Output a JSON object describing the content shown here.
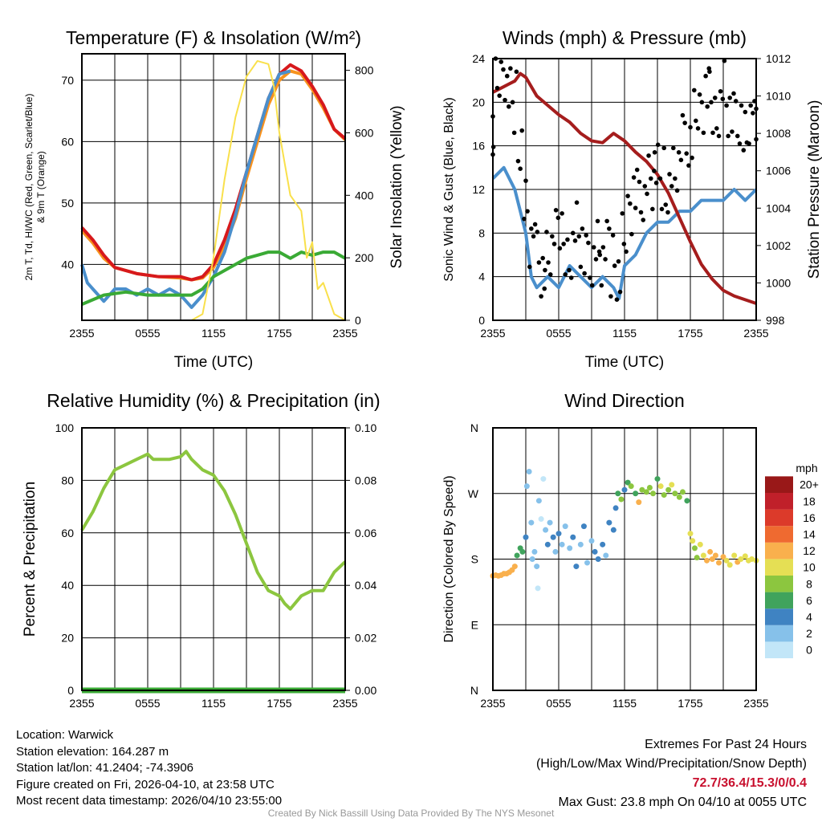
{
  "chart_data": [
    {
      "type": "line",
      "title": "Temperature (F) & Insolation (W/m²)",
      "xlabel": "Time (UTC)",
      "ylabel": "2m T, Td, HI/WC (Red, Green, Scarlet/Blue)",
      "ylabel2": "& 9m T (Orange)",
      "y2label": "Solar Insolation (Yellow)",
      "xticks": [
        "2355",
        "0555",
        "1155",
        "1755",
        "2355"
      ],
      "yticks": [
        40,
        50,
        60,
        70
      ],
      "y2ticks": [
        0,
        200,
        400,
        600,
        800
      ],
      "ylim": [
        30.9,
        74.3
      ],
      "y2lim": [
        0,
        853
      ],
      "xlim": [
        0,
        24
      ],
      "series": [
        {
          "name": "9m T",
          "color": "#f7931e",
          "axis": "left",
          "x": [
            0,
            1,
            2,
            3,
            5,
            7,
            9,
            10,
            11,
            12,
            13,
            14,
            15,
            16,
            17,
            18,
            19,
            20,
            21,
            22,
            23,
            24
          ],
          "y": [
            45.5,
            43.5,
            41,
            39.5,
            38.5,
            38,
            37.8,
            37.5,
            37.8,
            39.5,
            43,
            47.5,
            54,
            60,
            66,
            70,
            71.5,
            71,
            68.5,
            65.5,
            62,
            60.3
          ]
        },
        {
          "name": "2m T",
          "color": "#d7191c",
          "axis": "left",
          "x": [
            0,
            1,
            2,
            3,
            5,
            7,
            9,
            10,
            11,
            12,
            13,
            14,
            15,
            16,
            17,
            18,
            19,
            20,
            21,
            22,
            23,
            24
          ],
          "y": [
            46,
            44,
            41.5,
            39.5,
            38.5,
            38,
            38,
            37.5,
            38,
            40,
            44,
            49,
            55,
            61,
            67,
            71,
            72.5,
            71.5,
            69,
            66,
            62,
            60.5
          ]
        },
        {
          "name": "HI/WC",
          "color": "#4a8fcc",
          "axis": "left",
          "x": [
            0,
            0.5,
            1,
            2,
            3,
            4,
            5,
            6,
            7,
            8,
            9,
            10,
            11,
            12,
            13,
            14,
            15,
            16,
            17,
            18,
            19
          ],
          "y": [
            40,
            37,
            36,
            34,
            36,
            36,
            35,
            36,
            35,
            36,
            35,
            33,
            35,
            38,
            42,
            48,
            55,
            61,
            67,
            71,
            71.5
          ]
        },
        {
          "name": "Td",
          "color": "#3aaa35",
          "axis": "left",
          "x": [
            0,
            2,
            4,
            6,
            8,
            10,
            11,
            12,
            13,
            14,
            15,
            16,
            17,
            18,
            19,
            20,
            21,
            22,
            23,
            24
          ],
          "y": [
            33.5,
            35,
            35.5,
            35,
            35,
            35,
            36,
            38,
            39,
            40,
            41,
            41.5,
            42,
            42,
            41,
            42,
            41.5,
            42,
            42,
            41
          ]
        },
        {
          "name": "Solar",
          "color": "#f9e04b",
          "axis": "right",
          "x": [
            0,
            10,
            11,
            12,
            13,
            14,
            15,
            16,
            17,
            17.5,
            18,
            19,
            20,
            20.5,
            21,
            21.5,
            22,
            23,
            24
          ],
          "y": [
            0,
            0,
            20,
            200,
            450,
            650,
            780,
            830,
            820,
            750,
            600,
            400,
            350,
            200,
            250,
            100,
            120,
            20,
            0
          ]
        }
      ]
    },
    {
      "type": "line",
      "title": "Winds (mph) & Pressure (mb)",
      "xlabel": "Time (UTC)",
      "ylabel": "Sonic Wind & Gust (Blue, Black)",
      "y2label": "Station Pressure (Maroon)",
      "xticks": [
        "2355",
        "0555",
        "1155",
        "1755",
        "2355"
      ],
      "yticks": [
        0,
        4,
        8,
        12,
        16,
        20,
        24
      ],
      "y2ticks": [
        998,
        1000,
        1002,
        1004,
        1006,
        1008,
        1010,
        1012
      ],
      "ylim": [
        0,
        24
      ],
      "y2lim": [
        998,
        1012
      ],
      "xlim": [
        0,
        24
      ],
      "series": [
        {
          "name": "Sonic Wind",
          "color": "#4a8fcc",
          "axis": "left",
          "x": [
            0,
            1,
            2,
            2.5,
            3,
            3.5,
            4,
            5,
            6,
            7,
            8,
            9,
            10,
            11,
            11.5,
            12,
            13,
            14,
            15,
            16,
            17,
            18,
            19,
            20,
            21,
            22,
            23,
            24
          ],
          "y": [
            13,
            14,
            12,
            10,
            8,
            4,
            3,
            4,
            3,
            5,
            4,
            3,
            4,
            3,
            2,
            5,
            6,
            8,
            9,
            9,
            10,
            10,
            11,
            11,
            11,
            12,
            11,
            12
          ]
        },
        {
          "name": "Pressure",
          "color": "#a51d1d",
          "axis": "right",
          "x": [
            0,
            1,
            2,
            2.5,
            3,
            4,
            5,
            6,
            7,
            8,
            9,
            10,
            11,
            12,
            13,
            14,
            15,
            16,
            17,
            18,
            19,
            20,
            21,
            22,
            23,
            24
          ],
          "y": [
            1010.2,
            1010.5,
            1010.8,
            1011.2,
            1011,
            1010,
            1009.5,
            1009,
            1008.6,
            1008,
            1007.6,
            1007.5,
            1008,
            1007.6,
            1007,
            1006.5,
            1005.8,
            1004.8,
            1003.5,
            1002.2,
            1001,
            1000.2,
            999.6,
            999.3,
            999.1,
            998.9
          ]
        },
        {
          "name": "Gust",
          "color": "#000000",
          "axis": "left",
          "style": "dots",
          "x": [
            0,
            0.5,
            1,
            1.5,
            2,
            2.5,
            3,
            3.5,
            4,
            4.5,
            5,
            5.5,
            6,
            6.5,
            7,
            7.5,
            8,
            8.5,
            9,
            9.5,
            10,
            10.5,
            11,
            11.5,
            12,
            12.5,
            13,
            13.5,
            14,
            14.5,
            15,
            15.5,
            16,
            16.5,
            17,
            17.5,
            18,
            18.5,
            19,
            19.5,
            20,
            20.5,
            21,
            21.5,
            22,
            22.5,
            23,
            23.5,
            24
          ],
          "y": [
            18,
            22,
            23,
            21,
            20,
            16,
            10,
            7,
            6,
            5,
            6,
            7,
            8,
            7,
            6,
            8,
            7,
            5,
            6,
            7,
            6,
            7,
            5,
            4,
            7,
            10,
            11,
            12,
            13,
            13,
            14,
            13,
            12,
            13,
            14,
            16,
            17,
            19,
            20,
            21,
            20,
            19,
            21,
            19,
            18,
            19,
            17,
            19,
            18
          ]
        }
      ]
    },
    {
      "type": "line",
      "title": "Relative Humidity (%) & Precipitation (in)",
      "ylabel": "Percent & Precipitation",
      "xticks": [
        "2355",
        "0555",
        "1155",
        "1755",
        "2355"
      ],
      "yticks": [
        0,
        20,
        40,
        60,
        80,
        100
      ],
      "y2ticks": [
        "0.00",
        "0.02",
        "0.04",
        "0.06",
        "0.08",
        "0.10"
      ],
      "ylim": [
        0,
        100
      ],
      "y2lim": [
        0,
        0.1
      ],
      "xlim": [
        0,
        24
      ],
      "series": [
        {
          "name": "RH",
          "color": "#8cc63f",
          "axis": "left",
          "x": [
            0,
            1,
            2,
            3,
            4,
            5,
            6,
            6.5,
            7,
            8,
            9,
            9.5,
            10,
            11,
            12,
            13,
            14,
            15,
            16,
            17,
            18,
            18.5,
            19,
            20,
            21,
            22,
            23,
            24
          ],
          "y": [
            61,
            68,
            77,
            84,
            86,
            88,
            90,
            88,
            88,
            88,
            89,
            91,
            88,
            84,
            82,
            76,
            67,
            56,
            45,
            38,
            36,
            33,
            31,
            36,
            38,
            38,
            45,
            49
          ]
        },
        {
          "name": "Precipitation",
          "color": "#3aaa35",
          "axis": "right",
          "x": [
            0,
            24
          ],
          "y": [
            0,
            0
          ]
        }
      ]
    },
    {
      "type": "scatter",
      "title": "Wind Direction",
      "ylabel": "Direction (Colored By Speed)",
      "xticks": [
        "2355",
        "0555",
        "1155",
        "1755",
        "2355"
      ],
      "ytick_labels": [
        "N",
        "E",
        "S",
        "W",
        "N"
      ],
      "ylim": [
        0,
        360
      ],
      "xlim": [
        0,
        24
      ],
      "legend": {
        "title": "mph",
        "labels": [
          "0",
          "2",
          "4",
          "6",
          "8",
          "10",
          "12",
          "14",
          "16",
          "18",
          "20+"
        ],
        "colors": [
          "#c2e6f8",
          "#86c1ea",
          "#3f83c2",
          "#40a35c",
          "#8cc63f",
          "#e5df54",
          "#f9b04d",
          "#ef6a30",
          "#dc3a2a",
          "#c0202a",
          "#991818"
        ],
        "placement": "right"
      },
      "points": [
        [
          0,
          157,
          13
        ],
        [
          0.25,
          158,
          13
        ],
        [
          0.5,
          157,
          13
        ],
        [
          0.75,
          158,
          13
        ],
        [
          1,
          160,
          13
        ],
        [
          1.25,
          160,
          13
        ],
        [
          1.5,
          162,
          13
        ],
        [
          1.75,
          165,
          13
        ],
        [
          2,
          170,
          12
        ],
        [
          2.2,
          185,
          7
        ],
        [
          2.5,
          195,
          7
        ],
        [
          2.7,
          190,
          6
        ],
        [
          3,
          210,
          4
        ],
        [
          3.1,
          280,
          3
        ],
        [
          3.3,
          300,
          2
        ],
        [
          3.5,
          230,
          2
        ],
        [
          3.6,
          180,
          3
        ],
        [
          3.8,
          190,
          2
        ],
        [
          4,
          170,
          3
        ],
        [
          4.1,
          140,
          1
        ],
        [
          4.2,
          260,
          2
        ],
        [
          4.4,
          235,
          1
        ],
        [
          4.6,
          290,
          1
        ],
        [
          4.8,
          220,
          3
        ],
        [
          5,
          200,
          4
        ],
        [
          5.2,
          230,
          3
        ],
        [
          5.5,
          210,
          4
        ],
        [
          5.7,
          190,
          3
        ],
        [
          6,
          215,
          4
        ],
        [
          6.3,
          200,
          3
        ],
        [
          6.6,
          225,
          2
        ],
        [
          7,
          195,
          2
        ],
        [
          7.3,
          210,
          4
        ],
        [
          7.6,
          170,
          4
        ],
        [
          8,
          200,
          3
        ],
        [
          8.3,
          225,
          4
        ],
        [
          8.6,
          175,
          3
        ],
        [
          9,
          205,
          3
        ],
        [
          9.3,
          190,
          4
        ],
        [
          9.6,
          180,
          4
        ],
        [
          10,
          200,
          4
        ],
        [
          10.3,
          185,
          3
        ],
        [
          10.6,
          230,
          4
        ],
        [
          11,
          220,
          5
        ],
        [
          11.2,
          250,
          4
        ],
        [
          11.4,
          270,
          6
        ],
        [
          11.7,
          262,
          9
        ],
        [
          12,
          275,
          5
        ],
        [
          12.3,
          285,
          6
        ],
        [
          12.6,
          280,
          8
        ],
        [
          13,
          270,
          7
        ],
        [
          13.3,
          258,
          12
        ],
        [
          13.6,
          275,
          8
        ],
        [
          14,
          272,
          8
        ],
        [
          14.3,
          278,
          9
        ],
        [
          14.6,
          270,
          8
        ],
        [
          15,
          290,
          7
        ],
        [
          15.3,
          280,
          10
        ],
        [
          15.6,
          268,
          9
        ],
        [
          16,
          275,
          8
        ],
        [
          16.3,
          282,
          10
        ],
        [
          16.6,
          270,
          9
        ],
        [
          17,
          265,
          8
        ],
        [
          17.3,
          272,
          9
        ],
        [
          17.7,
          260,
          7
        ],
        [
          18,
          215,
          10
        ],
        [
          18.2,
          205,
          11
        ],
        [
          18.4,
          195,
          9
        ],
        [
          18.6,
          182,
          8
        ],
        [
          18.9,
          200,
          11
        ],
        [
          19.2,
          185,
          10
        ],
        [
          19.5,
          178,
          12
        ],
        [
          19.8,
          190,
          12
        ],
        [
          20,
          180,
          12
        ],
        [
          20.3,
          185,
          13
        ],
        [
          20.6,
          175,
          12
        ],
        [
          21,
          183,
          12
        ],
        [
          21.3,
          178,
          11
        ],
        [
          21.6,
          172,
          10
        ],
        [
          22,
          185,
          11
        ],
        [
          22.3,
          176,
          12
        ],
        [
          22.6,
          180,
          10
        ],
        [
          23,
          184,
          11
        ],
        [
          23.3,
          178,
          10
        ],
        [
          23.6,
          180,
          11
        ],
        [
          24,
          178,
          10
        ]
      ]
    }
  ],
  "info": {
    "location": "Location: Warwick",
    "elevation": "Station elevation: 164.287 m",
    "latlon": "Station lat/lon: 41.2404; -74.3906",
    "created": "Figure created on Fri, 2026-04-10, at 23:58 UTC",
    "timestamp": "Most recent data timestamp: 2026/04/10 23:55:00"
  },
  "extremes": {
    "title": "Extremes For Past 24 Hours",
    "subtitle": "(High/Low/Max Wind/Precipitation/Snow Depth)",
    "values": "72.7/36.4/15.3/0/0.4",
    "gust": "Max Gust: 23.8 mph On 04/10 at 0055 UTC",
    "value_color": "#c8102e"
  },
  "credit": "Created By Nick Bassill Using Data Provided By The NYS Mesonet"
}
